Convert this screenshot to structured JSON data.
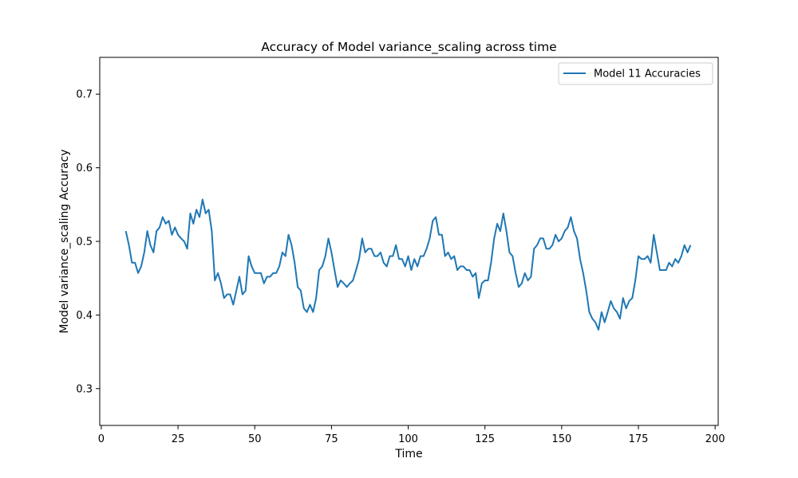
{
  "chart_data": {
    "type": "line",
    "title": "Accuracy of Model variance_scaling across time",
    "xlabel": "Time",
    "ylabel": "Model variance_scaling Accuracy",
    "xlim": [
      -0.5,
      201
    ],
    "ylim": [
      0.25,
      0.75
    ],
    "xticks": [
      0,
      25,
      50,
      75,
      100,
      125,
      150,
      175,
      200
    ],
    "yticks": [
      0.3,
      0.4,
      0.5,
      0.6,
      0.7
    ],
    "xtick_labels": [
      "0",
      "25",
      "50",
      "75",
      "100",
      "125",
      "150",
      "175",
      "200"
    ],
    "ytick_labels": [
      "0.3",
      "0.4",
      "0.5",
      "0.6",
      "0.7"
    ],
    "grid": false,
    "legend_position": "top-right",
    "series": [
      {
        "name": "Model 11 Accuracies",
        "color": "#1f77b4",
        "x": [
          8,
          9,
          10,
          11,
          12,
          13,
          14,
          15,
          16,
          17,
          18,
          19,
          20,
          21,
          22,
          23,
          24,
          25,
          26,
          27,
          28,
          29,
          30,
          31,
          32,
          33,
          34,
          35,
          36,
          37,
          38,
          39,
          40,
          41,
          42,
          43,
          44,
          45,
          46,
          47,
          48,
          49,
          50,
          51,
          52,
          53,
          54,
          55,
          56,
          57,
          58,
          59,
          60,
          61,
          62,
          63,
          64,
          65,
          66,
          67,
          68,
          69,
          70,
          71,
          72,
          73,
          74,
          75,
          76,
          77,
          78,
          79,
          80,
          81,
          82,
          83,
          84,
          85,
          86,
          87,
          88,
          89,
          90,
          91,
          92,
          93,
          94,
          95,
          96,
          97,
          98,
          99,
          100,
          101,
          102,
          103,
          104,
          105,
          106,
          107,
          108,
          109,
          110,
          111,
          112,
          113,
          114,
          115,
          116,
          117,
          118,
          119,
          120,
          121,
          122,
          123,
          124,
          125,
          126,
          127,
          128,
          129,
          130,
          131,
          132,
          133,
          134,
          135,
          136,
          137,
          138,
          139,
          140,
          141,
          142,
          143,
          144,
          145,
          146,
          147,
          148,
          149,
          150,
          151,
          152,
          153,
          154,
          155,
          156,
          157,
          158,
          159,
          160,
          161,
          162,
          163,
          164,
          165,
          166,
          167,
          168,
          169,
          170,
          171,
          172,
          173,
          174,
          175,
          176,
          177,
          178,
          179,
          180,
          181,
          182,
          183,
          184,
          185,
          186,
          187,
          188,
          189,
          190,
          191,
          192
        ],
        "y": [
          0.514,
          0.495,
          0.471,
          0.471,
          0.457,
          0.466,
          0.485,
          0.514,
          0.495,
          0.485,
          0.514,
          0.519,
          0.533,
          0.524,
          0.528,
          0.509,
          0.519,
          0.509,
          0.504,
          0.5,
          0.49,
          0.538,
          0.524,
          0.543,
          0.533,
          0.557,
          0.538,
          0.543,
          0.514,
          0.447,
          0.457,
          0.443,
          0.423,
          0.428,
          0.428,
          0.414,
          0.433,
          0.452,
          0.428,
          0.433,
          0.48,
          0.466,
          0.457,
          0.457,
          0.457,
          0.443,
          0.452,
          0.452,
          0.457,
          0.457,
          0.466,
          0.485,
          0.48,
          0.509,
          0.495,
          0.471,
          0.438,
          0.433,
          0.409,
          0.404,
          0.414,
          0.404,
          0.423,
          0.461,
          0.466,
          0.48,
          0.504,
          0.485,
          0.461,
          0.438,
          0.447,
          0.443,
          0.438,
          0.443,
          0.447,
          0.461,
          0.476,
          0.504,
          0.485,
          0.49,
          0.49,
          0.48,
          0.48,
          0.485,
          0.471,
          0.466,
          0.48,
          0.48,
          0.495,
          0.476,
          0.476,
          0.466,
          0.48,
          0.461,
          0.476,
          0.466,
          0.48,
          0.48,
          0.49,
          0.504,
          0.528,
          0.533,
          0.509,
          0.509,
          0.48,
          0.485,
          0.476,
          0.48,
          0.461,
          0.466,
          0.466,
          0.461,
          0.461,
          0.452,
          0.457,
          0.423,
          0.443,
          0.447,
          0.447,
          0.471,
          0.504,
          0.524,
          0.514,
          0.538,
          0.514,
          0.485,
          0.48,
          0.457,
          0.438,
          0.443,
          0.457,
          0.447,
          0.452,
          0.49,
          0.495,
          0.504,
          0.504,
          0.49,
          0.49,
          0.495,
          0.509,
          0.5,
          0.504,
          0.514,
          0.519,
          0.533,
          0.514,
          0.504,
          0.476,
          0.457,
          0.433,
          0.404,
          0.395,
          0.39,
          0.38,
          0.404,
          0.39,
          0.404,
          0.419,
          0.409,
          0.404,
          0.395,
          0.423,
          0.409,
          0.419,
          0.423,
          0.447,
          0.48,
          0.476,
          0.476,
          0.48,
          0.471,
          0.509,
          0.485,
          0.461,
          0.461,
          0.461,
          0.471,
          0.466,
          0.476,
          0.471,
          0.48,
          0.495,
          0.485,
          0.495
        ]
      }
    ]
  }
}
